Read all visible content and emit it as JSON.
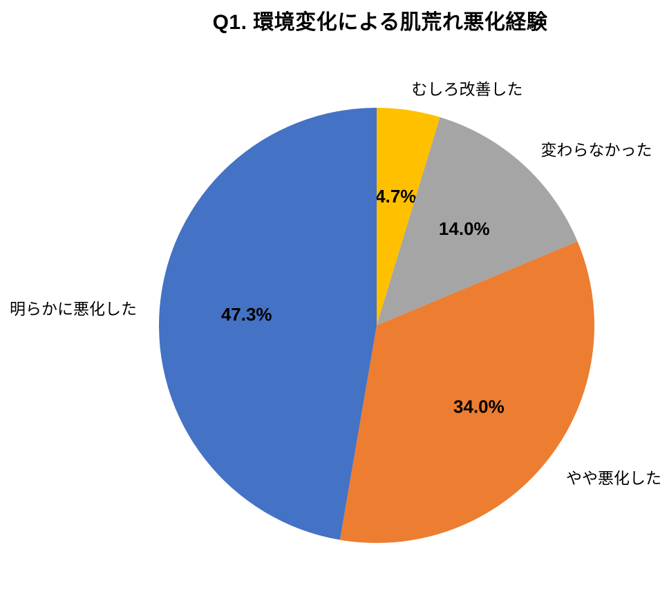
{
  "chart_data": {
    "type": "pie",
    "title": "Q1. 環境変化による肌荒れ悪化経験",
    "legend_position": "none",
    "labels_layout": "category-names-outside, percentage-values-inside",
    "start_angle_deg": 0,
    "direction": "clockwise",
    "total_percent": 100.0,
    "slices": [
      {
        "label": "むしろ改善した",
        "value": 4.7,
        "value_label": "4.7%",
        "color": "#FFC000"
      },
      {
        "label": "変わらなかった",
        "value": 14.0,
        "value_label": "14.0%",
        "color": "#A5A5A5"
      },
      {
        "label": "やや悪化した",
        "value": 34.0,
        "value_label": "34.0%",
        "color": "#ED7D31"
      },
      {
        "label": "明らかに悪化した",
        "value": 47.3,
        "value_label": "47.3%",
        "color": "#4472C4"
      }
    ]
  }
}
